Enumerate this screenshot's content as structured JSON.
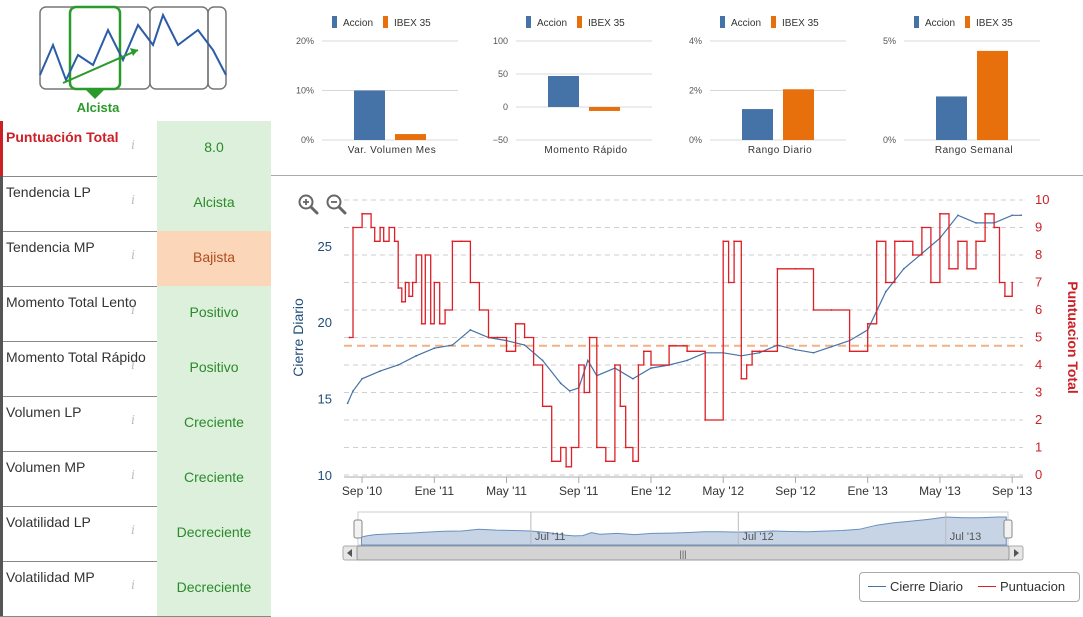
{
  "trend_icon": {
    "label": "Alcista",
    "name": "trend-chart-icon"
  },
  "score_rows": [
    {
      "label": "Puntuación Total",
      "value": "8.0",
      "tone": "g"
    },
    {
      "label": "Tendencia LP",
      "value": "Alcista",
      "tone": "g"
    },
    {
      "label": "Tendencia MP",
      "value": "Bajista",
      "tone": "o"
    },
    {
      "label": "Momento Total Lento",
      "value": "Positivo",
      "tone": "g"
    },
    {
      "label": "Momento Total Rápido",
      "value": "Positivo",
      "tone": "g"
    },
    {
      "label": "Volumen LP",
      "value": "Creciente",
      "tone": "g"
    },
    {
      "label": "Volumen MP",
      "value": "Creciente",
      "tone": "g"
    },
    {
      "label": "Volatilidad LP",
      "value": "Decreciente",
      "tone": "g"
    },
    {
      "label": "Volatilidad MP",
      "value": "Decreciente",
      "tone": "g"
    }
  ],
  "info_glyph": "i",
  "colors": {
    "accion": "#4572a7",
    "ibex": "#e8700c",
    "cierre": "#4572a7",
    "puntuacion": "#dd1f26",
    "score_red": "#cc2027",
    "green": "#2a8a2a"
  },
  "chart_data": [
    {
      "type": "bar",
      "categories": [
        "Var. Volumen Mes"
      ],
      "series": [
        {
          "name": "Accion",
          "values": [
            10
          ]
        },
        {
          "name": "IBEX 35",
          "values": [
            1.2
          ]
        }
      ],
      "ylim": [
        0,
        20
      ],
      "yticks": [
        "0%",
        "10%",
        "20%"
      ],
      "ytick_values": [
        0,
        10,
        20
      ]
    },
    {
      "type": "bar",
      "categories": [
        "Momento Rápido"
      ],
      "series": [
        {
          "name": "Accion",
          "values": [
            47
          ]
        },
        {
          "name": "IBEX 35",
          "values": [
            -6
          ]
        }
      ],
      "ylim": [
        -50,
        100
      ],
      "yticks": [
        "−50",
        "0",
        "50",
        "100"
      ],
      "ytick_values": [
        -50,
        0,
        50,
        100
      ]
    },
    {
      "type": "bar",
      "categories": [
        "Rango Diario"
      ],
      "series": [
        {
          "name": "Accion",
          "values": [
            1.25
          ]
        },
        {
          "name": "IBEX 35",
          "values": [
            2.05
          ]
        }
      ],
      "ylim": [
        0,
        4
      ],
      "yticks": [
        "0%",
        "2%",
        "4%"
      ],
      "ytick_values": [
        0,
        2,
        4
      ]
    },
    {
      "type": "bar",
      "categories": [
        "Rango Semanal"
      ],
      "series": [
        {
          "name": "Accion",
          "values": [
            2.2
          ]
        },
        {
          "name": "IBEX 35",
          "values": [
            4.5
          ]
        }
      ],
      "ylim": [
        0,
        5
      ],
      "yticks": [
        "0%",
        "5%"
      ],
      "ytick_values": [
        0,
        5
      ]
    },
    {
      "type": "line",
      "x_range": [
        "2010-08",
        "2013-09"
      ],
      "xticks": [
        "Sep '10",
        "Ene '11",
        "May '11",
        "Sep '11",
        "Ene '12",
        "May '12",
        "Sep '12",
        "Ene '13",
        "May '13",
        "Sep '13"
      ],
      "xtick_months": [
        1,
        5,
        9,
        13,
        17,
        21,
        25,
        29,
        33,
        37
      ],
      "ylabel": "Cierre Diario",
      "y2label": "Puntuacion Total",
      "ylim": [
        10,
        28
      ],
      "yticks": [
        10,
        15,
        20,
        25
      ],
      "y2lim": [
        0,
        10
      ],
      "y2ticks": [
        0,
        1,
        2,
        3,
        4,
        5,
        6,
        7,
        8,
        9,
        10
      ],
      "reference_line_y2": 4.7,
      "series": [
        {
          "name": "Cierre Diario",
          "axis": "left",
          "x_months": [
            0.2,
            0.5,
            1,
            2,
            3,
            4,
            5,
            6,
            7,
            8,
            9,
            10,
            11,
            12,
            12.5,
            13,
            13.5,
            14,
            15,
            16,
            17,
            18,
            19,
            20,
            21,
            22,
            23,
            24,
            25,
            26,
            27,
            28,
            29,
            30,
            31,
            32,
            33,
            34,
            35,
            36,
            37,
            37.5
          ],
          "values": [
            14.7,
            15.5,
            16.3,
            16.8,
            17.2,
            17.8,
            18.3,
            18.5,
            19.5,
            19,
            18.8,
            18.5,
            17.5,
            16,
            15.5,
            15.7,
            17.5,
            16.5,
            17,
            16.3,
            17,
            17.2,
            17.5,
            18,
            18,
            17.8,
            18,
            18.5,
            18.2,
            18,
            18.4,
            18.8,
            19.5,
            22,
            23.5,
            24.5,
            25.5,
            27,
            26.5,
            26.5,
            27,
            27
          ]
        },
        {
          "name": "Puntuacion",
          "axis": "right",
          "step": true,
          "x_months": [
            0.3,
            0.5,
            1.0,
            1.5,
            1.7,
            2.0,
            2.2,
            2.5,
            2.8,
            3.0,
            3.2,
            3.4,
            3.6,
            3.8,
            4.0,
            4.3,
            4.5,
            4.8,
            5.0,
            5.3,
            5.6,
            6.0,
            6.5,
            7.0,
            7.5,
            8.0,
            8.5,
            9.0,
            9.5,
            10.0,
            10.5,
            11.0,
            11.5,
            12.0,
            12.3,
            12.6,
            13.0,
            13.3,
            13.6,
            14.0,
            14.5,
            15.0,
            15.3,
            15.6,
            16.0,
            16.3,
            16.6,
            17.0,
            18.0,
            19.0,
            20.0,
            21.0,
            21.3,
            21.6,
            22.0,
            22.3,
            22.6,
            23.0,
            24.0,
            25.0,
            26.0,
            27.0,
            28.0,
            29.0,
            29.5,
            30.0,
            30.5,
            31.0,
            31.5,
            32.0,
            32.5,
            33.0,
            33.5,
            34.0,
            34.5,
            35.0,
            35.5,
            36.0,
            36.3,
            36.6,
            37.0
          ],
          "values": [
            5,
            9,
            9.5,
            9,
            8.5,
            9,
            8.5,
            9,
            8.5,
            6.8,
            6.3,
            7,
            6.5,
            7,
            8,
            5.5,
            8,
            5.5,
            7,
            5.5,
            6,
            8.5,
            8.5,
            7,
            6,
            5,
            5,
            4.5,
            5.5,
            5,
            4,
            2.5,
            0.5,
            1,
            0.3,
            1,
            4,
            3,
            5,
            1,
            0.5,
            4,
            2.5,
            1,
            0.5,
            4,
            4.5,
            4,
            4.7,
            4.5,
            2,
            8.5,
            7,
            8.5,
            3.5,
            4,
            4.5,
            4.5,
            7.5,
            7.5,
            6,
            6,
            4.5,
            5.5,
            8.5,
            7,
            8.5,
            8.5,
            8,
            9,
            7,
            9.5,
            7.5,
            8.5,
            7.5,
            8.5,
            9.5,
            9,
            7,
            6.5,
            7
          ]
        }
      ]
    }
  ],
  "navigator": {
    "labels": [
      "Jul '11",
      "Jul '12",
      "Jul '13"
    ],
    "grip": "|||"
  },
  "zoom": {
    "in": "zoom-in-icon",
    "out": "zoom-out-icon"
  },
  "legend": {
    "cierre": "Cierre Diario",
    "puntuacion": "Puntuacion"
  }
}
